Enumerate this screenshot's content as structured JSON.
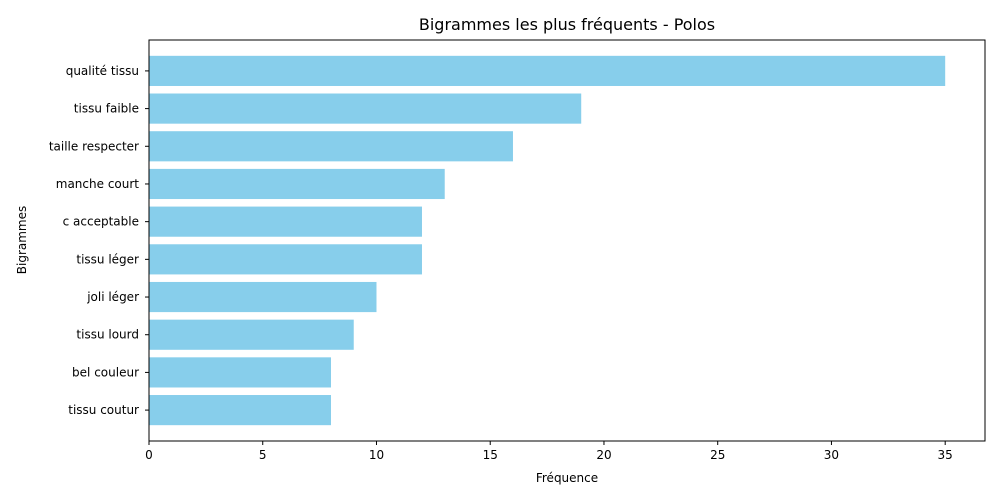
{
  "chart_data": {
    "type": "bar",
    "orientation": "horizontal",
    "title": "Bigrammes les plus fréquents - Polos",
    "xlabel": "Fréquence",
    "ylabel": "Bigrammes",
    "categories": [
      "qualité tissu",
      "tissu faible",
      "taille respecter",
      "manche court",
      "c acceptable",
      "tissu léger",
      "joli léger",
      "tissu lourd",
      "bel couleur",
      "tissu coutur"
    ],
    "values": [
      35,
      19,
      16,
      13,
      12,
      12,
      10,
      9,
      8,
      8
    ],
    "xlim": [
      0,
      36.75
    ],
    "xticks": [
      0,
      5,
      10,
      15,
      20,
      25,
      30,
      35
    ],
    "bar_color": "#87CEEB",
    "grid": false,
    "legend": false
  }
}
